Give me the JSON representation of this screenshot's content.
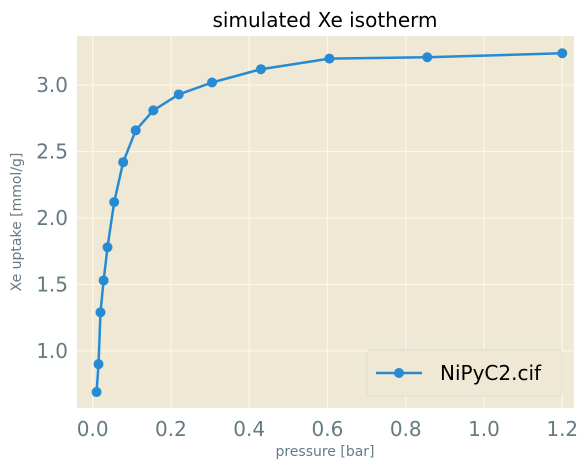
{
  "chart_data": {
    "type": "line",
    "title": "simulated Xe isotherm",
    "xlabel": "pressure [bar]",
    "ylabel": "Xe uptake [mmol/g]",
    "xlim": [
      -0.04,
      1.23
    ],
    "ylim": [
      0.57,
      3.37
    ],
    "xticks": [
      0.0,
      0.2,
      0.4,
      0.6,
      0.8,
      1.0,
      1.2
    ],
    "xtick_labels": [
      "0.0",
      "0.2",
      "0.4",
      "0.6",
      "0.8",
      "1.0",
      "1.2"
    ],
    "yticks": [
      1.0,
      1.5,
      2.0,
      2.5,
      3.0
    ],
    "ytick_labels": [
      "1.0",
      "1.5",
      "2.0",
      "2.5",
      "3.0"
    ],
    "grid": true,
    "legend_position": "bottom-right",
    "series": [
      {
        "name": "NiPyC2.cif",
        "color": "#268bd2",
        "marker": "circle",
        "x": [
          0.01,
          0.015,
          0.02,
          0.028,
          0.038,
          0.055,
          0.078,
          0.11,
          0.155,
          0.22,
          0.305,
          0.43,
          0.605,
          0.855,
          1.2
        ],
        "y": [
          0.69,
          0.9,
          1.29,
          1.53,
          1.78,
          2.12,
          2.42,
          2.66,
          2.81,
          2.93,
          3.02,
          3.12,
          3.2,
          3.21,
          3.24
        ]
      }
    ]
  },
  "colors": {
    "plot_background": "#eee8d5",
    "grid": "#fdf6e3",
    "text": "#657b83",
    "legend_background": "#eee8d5",
    "legend_border": "#dcdcdc"
  }
}
